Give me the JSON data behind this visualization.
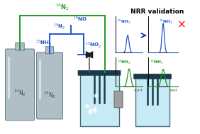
{
  "bg_color": "#ffffff",
  "green_color": "#229922",
  "blue_color": "#2255cc",
  "dark_blue": "#1133aa",
  "cyl_fill": "#b0bec5",
  "cyl_edge": "#607d8b",
  "cyl_shade": "#90a4ae",
  "vessel_water": "#b3e5f5",
  "vessel_top": "#1a3a4a",
  "vessel_side": "#1a3a4a",
  "title": "NRR validation",
  "label_14N2_cyl": "$^{14}$N$_2$",
  "label_15N2_cyl": "$^{15}$N$_2$",
  "label_14N2_line": "$^{14}$N$_2$",
  "label_15N2_line": "$^{15}$N$_2$",
  "label_15NO": "$^{15}$NO",
  "label_15NO2": "$^{15}$NO$_2$",
  "label_15NH3_blue": "$^{15}$NH$_3$",
  "label_15NH3_peak_top": "$^{15}$NH$_3$",
  "label_15NH3_peak_tr": "$^{15}$NH$_3$",
  "label_14NH3_start": "$^{14}$NH$_3$",
  "label_14NH3_end": "$^{14}$NH$_3$",
  "label_start": "start",
  "label_end": "end"
}
